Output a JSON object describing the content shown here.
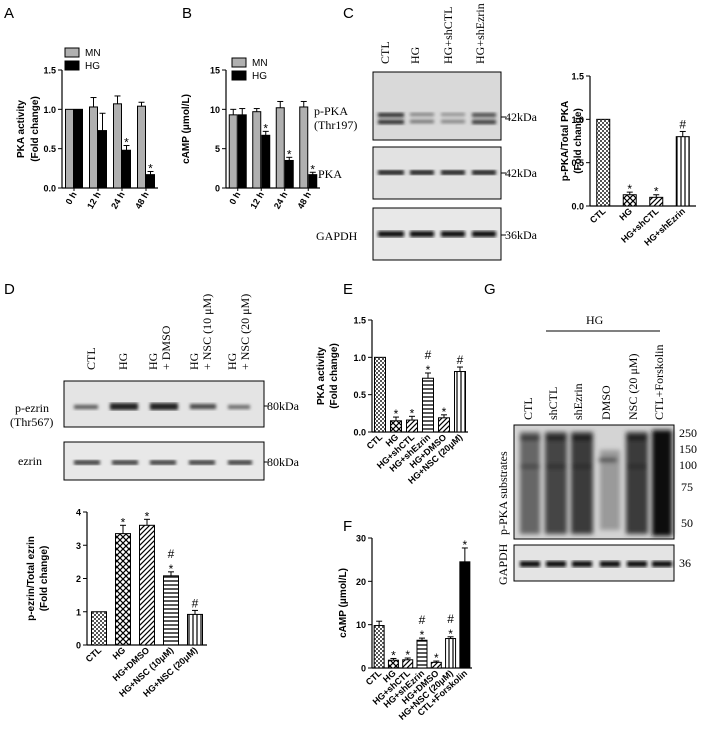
{
  "panel_letters": {
    "A": "A",
    "B": "B",
    "C": "C",
    "D": "D",
    "E": "E",
    "F": "F",
    "G": "G"
  },
  "blots": {
    "C": {
      "lanes": [
        "CTL",
        "HG",
        "HG+shCTL",
        "HG+shEzrin"
      ],
      "rows": [
        {
          "label": "p-PKA",
          "sub": "(Thr197)",
          "kda": "42kDa"
        },
        {
          "label": "PKA",
          "sub": "",
          "kda": "42kDa"
        },
        {
          "label": "GAPDH",
          "sub": "",
          "kda": "36kDa"
        }
      ]
    },
    "D": {
      "lanes": [
        {
          "l1": "CTL",
          "l2": ""
        },
        {
          "l1": "HG",
          "l2": ""
        },
        {
          "l1": "HG",
          "l2": "+ DMSO"
        },
        {
          "l1": "HG",
          "l2": "+ NSC (10 μM)"
        },
        {
          "l1": "HG",
          "l2": "+ NSC (20 μM)"
        }
      ],
      "rows": [
        {
          "label": "p-ezrin",
          "sub": "(Thr567)",
          "kda": "80kDa"
        },
        {
          "label": "ezrin",
          "sub": "",
          "kda": "80kDa"
        }
      ]
    },
    "G": {
      "hg_label": "HG",
      "lanes": [
        "CTL",
        "shCTL",
        "shEzrin",
        "DMSO",
        "NSC (20 μM)",
        "CTL+Forskolin"
      ],
      "row_label": "p-PKA substrates",
      "markers": [
        "250",
        "150",
        "100",
        "75",
        "50"
      ],
      "gapdh_label": "GAPDH",
      "gapdh_marker": "36"
    }
  },
  "chart_data": [
    {
      "panel": "A",
      "type": "bar",
      "categories": [
        "0 h",
        "12 h",
        "24 h",
        "48 h"
      ],
      "ylabel": "PKA activity",
      "ylabel2": "(Fold change)",
      "ylim": [
        0,
        1.5
      ],
      "yticks": [
        "0.0",
        "0.5",
        "1.0",
        "1.5"
      ],
      "legend": [
        "MN",
        "HG"
      ],
      "series": [
        {
          "name": "MN",
          "values": [
            1.0,
            1.03,
            1.07,
            1.04
          ],
          "err": [
            0,
            0.12,
            0.1,
            0.05
          ]
        },
        {
          "name": "HG",
          "values": [
            1.0,
            0.73,
            0.48,
            0.17
          ],
          "err": [
            0,
            0.22,
            0.06,
            0.04
          ]
        }
      ],
      "stars": [
        [
          "",
          "",
          "*",
          "*"
        ]
      ]
    },
    {
      "panel": "B",
      "type": "bar",
      "categories": [
        "0 h",
        "12 h",
        "24 h",
        "48 h"
      ],
      "ylabel": "cAMP (μmol/L)",
      "ylim": [
        0,
        15
      ],
      "yticks": [
        "0",
        "5",
        "10",
        "15"
      ],
      "legend": [
        "MN",
        "HG"
      ],
      "series": [
        {
          "name": "MN",
          "values": [
            9.3,
            9.7,
            10.2,
            10.3
          ],
          "err": [
            0.7,
            0.4,
            0.8,
            0.7
          ]
        },
        {
          "name": "HG",
          "values": [
            9.3,
            6.7,
            3.5,
            1.7
          ],
          "err": [
            0.8,
            0.5,
            0.4,
            0.3
          ]
        }
      ],
      "stars": [
        [
          "",
          "*",
          "*",
          "*"
        ]
      ]
    },
    {
      "panel": "C",
      "type": "bar",
      "categories": [
        "CTL",
        "HG",
        "HG+shCTL",
        "HG+shEzrin"
      ],
      "ylabel": "p-PKA/Total PKA",
      "ylabel2": "(Fold change)",
      "ylim": [
        0,
        1.5
      ],
      "yticks": [
        "0.0",
        "0.5",
        "1.0",
        "1.5"
      ],
      "values": [
        1.0,
        0.13,
        0.1,
        0.8
      ],
      "err": [
        0,
        0.03,
        0.03,
        0.06
      ],
      "marks": [
        "",
        "*",
        "*",
        "#"
      ]
    },
    {
      "panel": "D",
      "type": "bar",
      "categories": [
        "CTL",
        "HG",
        "HG+DMSO",
        "HG+NSC (10μM)",
        "HG+NSC (20μM)"
      ],
      "ylabel": "p-ezrin/Total ezrin",
      "ylabel2": "(Fold change)",
      "ylim": [
        0,
        4
      ],
      "yticks": [
        "0",
        "1",
        "2",
        "3",
        "4"
      ],
      "values": [
        1.0,
        3.35,
        3.6,
        2.08,
        0.92
      ],
      "err": [
        0,
        0.25,
        0.18,
        0.12,
        0.12
      ],
      "marks": [
        "",
        "*",
        "*",
        "#\n*",
        "#"
      ]
    },
    {
      "panel": "E",
      "type": "bar",
      "categories": [
        "CTL",
        "HG",
        "HG+shCTL",
        "HG+shEzrin",
        "HG+DMSO",
        "HG+NSC (20μM)"
      ],
      "ylabel": "PKA activity",
      "ylabel2": "(Fold change)",
      "ylim": [
        0,
        1.5
      ],
      "yticks": [
        "0.0",
        "0.5",
        "1.0",
        "1.5"
      ],
      "values": [
        1.0,
        0.15,
        0.16,
        0.72,
        0.19,
        0.81
      ],
      "err": [
        0,
        0.05,
        0.05,
        0.07,
        0.04,
        0.06
      ],
      "marks": [
        "",
        "*",
        "*",
        "#\n*",
        "*",
        "#"
      ]
    },
    {
      "panel": "F",
      "type": "bar",
      "categories": [
        "CTL",
        "HG",
        "HG+shCTL",
        "HG+shEzrin",
        "HG+DMSO",
        "HG+NSC (20μM)",
        "CTL+Forskolin"
      ],
      "ylabel": "cAMP (μmol/L)",
      "ylim": [
        0,
        30
      ],
      "yticks": [
        "0",
        "10",
        "20",
        "30"
      ],
      "values": [
        9.8,
        1.8,
        1.9,
        6.4,
        1.3,
        6.8,
        24.5
      ],
      "err": [
        1.0,
        0.4,
        0.4,
        0.5,
        0.3,
        0.4,
        3.2
      ],
      "marks": [
        "",
        "*",
        "*",
        "#\n*",
        "*",
        "#\n*",
        "*"
      ]
    }
  ]
}
